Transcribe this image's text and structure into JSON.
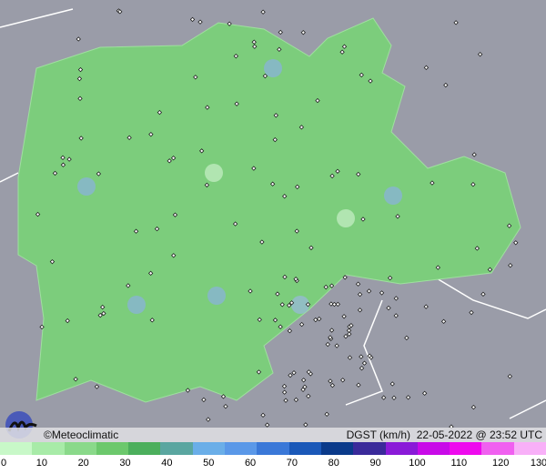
{
  "brand": "©Meteoclimatic",
  "info": {
    "variable": "DGST (km/h)",
    "timestamp": "22-05-2022 @ 23:52 UTC"
  },
  "colors": {
    "land_background": "#9a9ca8",
    "region_fill": "#7ccd7c",
    "station_marker": "#222222"
  },
  "legend": {
    "ticks": [
      "0",
      "10",
      "20",
      "30",
      "40",
      "50",
      "60",
      "70",
      "80",
      "90",
      "100",
      "110",
      "120",
      "130"
    ],
    "colors": [
      "#c8f8c8",
      "#a8eba8",
      "#8ad98a",
      "#6cc86c",
      "#4caf5c",
      "#5aa6a0",
      "#6aaee8",
      "#5a98e8",
      "#3a78d8",
      "#1a58b8",
      "#0a3a8a",
      "#3a2a9a",
      "#8a1ad8",
      "#c80ae8",
      "#ee0aee",
      "#f060f0",
      "#f8b0f8"
    ]
  }
}
